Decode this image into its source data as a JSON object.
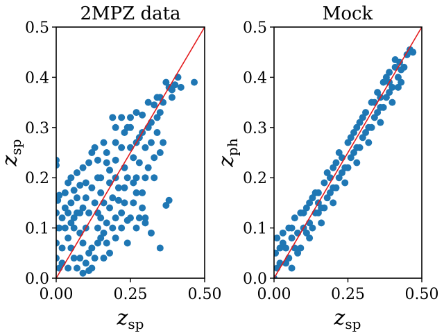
{
  "colors": {
    "points": "#1f77b4",
    "identity_line": "#e31a1c",
    "axes": "#000000"
  },
  "chart_data": [
    {
      "type": "scatter",
      "title": "2MPZ data",
      "xlabel": {
        "symbol": "z",
        "subscript": "sp"
      },
      "ylabel": {
        "symbol": "z",
        "subscript": "sp"
      },
      "xlim": [
        0,
        0.5
      ],
      "ylim": [
        0,
        0.5
      ],
      "xticks": [
        "0.00",
        "0.25",
        "0.50"
      ],
      "yticks": [
        "0.0",
        "0.1",
        "0.2",
        "0.3",
        "0.4",
        "0.5"
      ],
      "reference_line": {
        "from": [
          0,
          0
        ],
        "to": [
          0.5,
          0.5
        ]
      },
      "grid": false,
      "points": [
        [
          0.0,
          0.235
        ],
        [
          0.0,
          0.225
        ],
        [
          0.005,
          0.155
        ],
        [
          0.01,
          0.165
        ],
        [
          0.01,
          0.02
        ],
        [
          0.02,
          0.12
        ],
        [
          0.03,
          0.17
        ],
        [
          0.04,
          0.19
        ],
        [
          0.05,
          0.2
        ],
        [
          0.06,
          0.175
        ],
        [
          0.07,
          0.21
        ],
        [
          0.08,
          0.185
        ],
        [
          0.09,
          0.22
        ],
        [
          0.1,
          0.19
        ],
        [
          0.12,
          0.25
        ],
        [
          0.14,
          0.235
        ],
        [
          0.15,
          0.2
        ],
        [
          0.17,
          0.25
        ],
        [
          0.18,
          0.215
        ],
        [
          0.2,
          0.235
        ],
        [
          0.22,
          0.26
        ],
        [
          0.24,
          0.3
        ],
        [
          0.25,
          0.32
        ],
        [
          0.27,
          0.33
        ],
        [
          0.29,
          0.325
        ],
        [
          0.31,
          0.35
        ],
        [
          0.33,
          0.345
        ],
        [
          0.35,
          0.36
        ],
        [
          0.36,
          0.35
        ],
        [
          0.38,
          0.38
        ],
        [
          0.39,
          0.375
        ],
        [
          0.4,
          0.385
        ],
        [
          0.41,
          0.4
        ],
        [
          0.42,
          0.38
        ],
        [
          0.465,
          0.39
        ],
        [
          0.34,
          0.36
        ],
        [
          0.37,
          0.39
        ],
        [
          0.39,
          0.36
        ],
        [
          0.2,
          0.3
        ],
        [
          0.19,
          0.32
        ],
        [
          0.22,
          0.32
        ],
        [
          0.25,
          0.3
        ],
        [
          0.16,
          0.27
        ],
        [
          0.13,
          0.26
        ],
        [
          0.11,
          0.23
        ],
        [
          0.05,
          0.15
        ],
        [
          0.07,
          0.13
        ],
        [
          0.09,
          0.14
        ],
        [
          0.03,
          0.1
        ],
        [
          0.05,
          0.06
        ],
        [
          0.08,
          0.04
        ],
        [
          0.1,
          0.03
        ],
        [
          0.13,
          0.04
        ],
        [
          0.16,
          0.04
        ],
        [
          0.12,
          0.06
        ],
        [
          0.15,
          0.08
        ],
        [
          0.18,
          0.05
        ],
        [
          0.2,
          0.08
        ],
        [
          0.24,
          0.07
        ],
        [
          0.22,
          0.1
        ],
        [
          0.25,
          0.12
        ],
        [
          0.27,
          0.1
        ],
        [
          0.29,
          0.14
        ],
        [
          0.3,
          0.11
        ],
        [
          0.32,
          0.09
        ],
        [
          0.35,
          0.06
        ],
        [
          0.33,
          0.2
        ],
        [
          0.31,
          0.22
        ],
        [
          0.33,
          0.24
        ],
        [
          0.35,
          0.25
        ],
        [
          0.37,
          0.145
        ],
        [
          0.38,
          0.155
        ],
        [
          0.36,
          0.27
        ],
        [
          0.3,
          0.26
        ],
        [
          0.28,
          0.23
        ],
        [
          0.27,
          0.2
        ],
        [
          0.27,
          0.17
        ],
        [
          0.26,
          0.15
        ],
        [
          0.29,
          0.17
        ],
        [
          0.3,
          0.2
        ],
        [
          0.3,
          0.12
        ],
        [
          0.28,
          0.12
        ],
        [
          0.24,
          0.115
        ],
        [
          0.2,
          0.12
        ],
        [
          0.22,
          0.13
        ],
        [
          0.18,
          0.14
        ],
        [
          0.17,
          0.11
        ],
        [
          0.15,
          0.12
        ],
        [
          0.16,
          0.09
        ],
        [
          0.14,
          0.1
        ],
        [
          0.1,
          0.1
        ],
        [
          0.08,
          0.09
        ],
        [
          0.06,
          0.1
        ],
        [
          0.04,
          0.08
        ],
        [
          0.02,
          0.06
        ],
        [
          0.01,
          0.1
        ],
        [
          0.03,
          0.14
        ],
        [
          0.0,
          0.13
        ],
        [
          0.0,
          0.1
        ],
        [
          0.0,
          0.07
        ],
        [
          0.0,
          0.04
        ],
        [
          0.02,
          0.03
        ],
        [
          0.04,
          0.02
        ],
        [
          0.07,
          0.02
        ],
        [
          0.09,
          0.01
        ],
        [
          0.11,
          0.015
        ],
        [
          0.12,
          0.02
        ],
        [
          0.14,
          0.07
        ],
        [
          0.17,
          0.07
        ],
        [
          0.19,
          0.1
        ],
        [
          0.21,
          0.155
        ],
        [
          0.23,
          0.18
        ],
        [
          0.26,
          0.24
        ],
        [
          0.28,
          0.28
        ],
        [
          0.31,
          0.3
        ],
        [
          0.34,
          0.32
        ],
        [
          0.23,
          0.29
        ],
        [
          0.2,
          0.27
        ],
        [
          0.17,
          0.23
        ],
        [
          0.14,
          0.2
        ],
        [
          0.12,
          0.18
        ],
        [
          0.1,
          0.16
        ],
        [
          0.08,
          0.13
        ],
        [
          0.06,
          0.12
        ],
        [
          0.07,
          0.16
        ],
        [
          0.11,
          0.13
        ],
        [
          0.13,
          0.15
        ],
        [
          0.15,
          0.17
        ],
        [
          0.18,
          0.19
        ],
        [
          0.2,
          0.2
        ],
        [
          0.23,
          0.22
        ],
        [
          0.25,
          0.26
        ],
        [
          0.27,
          0.27
        ],
        [
          0.29,
          0.29
        ],
        [
          0.32,
          0.31
        ],
        [
          0.34,
          0.29
        ],
        [
          0.32,
          0.27
        ],
        [
          0.35,
          0.33
        ],
        [
          0.19,
          0.16
        ],
        [
          0.16,
          0.15
        ],
        [
          0.09,
          0.07
        ],
        [
          0.11,
          0.05
        ],
        [
          0.06,
          0.04
        ],
        [
          0.05,
          0.11
        ],
        [
          0.04,
          0.13
        ],
        [
          0.14,
          0.13
        ],
        [
          0.21,
          0.18
        ],
        [
          0.24,
          0.2
        ],
        [
          0.26,
          0.19
        ],
        [
          0.23,
          0.15
        ]
      ]
    },
    {
      "type": "scatter",
      "title": "Mock",
      "xlabel": {
        "symbol": "z",
        "subscript": "sp"
      },
      "ylabel": {
        "symbol": "z",
        "subscript": "ph"
      },
      "xlim": [
        0,
        0.5
      ],
      "ylim": [
        0,
        0.5
      ],
      "xticks": [
        "0.00",
        "0.25",
        "0.50"
      ],
      "yticks": [
        "0.0",
        "0.1",
        "0.2",
        "0.3",
        "0.4",
        "0.5"
      ],
      "reference_line": {
        "from": [
          0,
          0
        ],
        "to": [
          0.5,
          0.5
        ]
      },
      "grid": false,
      "points": [
        [
          0.0,
          0.0
        ],
        [
          0.005,
          0.05
        ],
        [
          0.01,
          0.08
        ],
        [
          0.02,
          0.03
        ],
        [
          0.02,
          0.06
        ],
        [
          0.03,
          0.09
        ],
        [
          0.04,
          0.06
        ],
        [
          0.05,
          0.1
        ],
        [
          0.05,
          0.04
        ],
        [
          0.06,
          0.08
        ],
        [
          0.07,
          0.12
        ],
        [
          0.08,
          0.09
        ],
        [
          0.08,
          0.05
        ],
        [
          0.09,
          0.13
        ],
        [
          0.1,
          0.1
        ],
        [
          0.11,
          0.14
        ],
        [
          0.12,
          0.11
        ],
        [
          0.12,
          0.08
        ],
        [
          0.13,
          0.16
        ],
        [
          0.14,
          0.13
        ],
        [
          0.15,
          0.17
        ],
        [
          0.16,
          0.14
        ],
        [
          0.16,
          0.11
        ],
        [
          0.17,
          0.19
        ],
        [
          0.18,
          0.16
        ],
        [
          0.19,
          0.2
        ],
        [
          0.2,
          0.18
        ],
        [
          0.2,
          0.15
        ],
        [
          0.21,
          0.23
        ],
        [
          0.22,
          0.2
        ],
        [
          0.23,
          0.24
        ],
        [
          0.24,
          0.22
        ],
        [
          0.24,
          0.19
        ],
        [
          0.25,
          0.27
        ],
        [
          0.26,
          0.24
        ],
        [
          0.27,
          0.29
        ],
        [
          0.28,
          0.26
        ],
        [
          0.28,
          0.23
        ],
        [
          0.29,
          0.31
        ],
        [
          0.3,
          0.28
        ],
        [
          0.31,
          0.33
        ],
        [
          0.32,
          0.3
        ],
        [
          0.32,
          0.27
        ],
        [
          0.33,
          0.35
        ],
        [
          0.34,
          0.32
        ],
        [
          0.35,
          0.37
        ],
        [
          0.36,
          0.34
        ],
        [
          0.36,
          0.31
        ],
        [
          0.37,
          0.39
        ],
        [
          0.38,
          0.36
        ],
        [
          0.39,
          0.41
        ],
        [
          0.4,
          0.38
        ],
        [
          0.4,
          0.35
        ],
        [
          0.41,
          0.42
        ],
        [
          0.42,
          0.4
        ],
        [
          0.425,
          0.43
        ],
        [
          0.43,
          0.39
        ],
        [
          0.45,
          0.445
        ],
        [
          0.46,
          0.455
        ],
        [
          0.47,
          0.45
        ],
        [
          0.41,
          0.435
        ],
        [
          0.43,
          0.415
        ],
        [
          0.38,
          0.4
        ],
        [
          0.36,
          0.36
        ],
        [
          0.34,
          0.35
        ],
        [
          0.3,
          0.32
        ],
        [
          0.26,
          0.28
        ],
        [
          0.22,
          0.25
        ],
        [
          0.18,
          0.21
        ],
        [
          0.14,
          0.17
        ],
        [
          0.1,
          0.13
        ],
        [
          0.06,
          0.1
        ],
        [
          0.03,
          0.07
        ],
        [
          0.01,
          0.02
        ],
        [
          0.04,
          0.03
        ],
        [
          0.07,
          0.06
        ],
        [
          0.11,
          0.09
        ],
        [
          0.15,
          0.13
        ],
        [
          0.19,
          0.17
        ],
        [
          0.23,
          0.21
        ],
        [
          0.27,
          0.25
        ],
        [
          0.31,
          0.29
        ],
        [
          0.35,
          0.33
        ],
        [
          0.39,
          0.37
        ],
        [
          0.37,
          0.34
        ],
        [
          0.33,
          0.3
        ],
        [
          0.29,
          0.26
        ],
        [
          0.25,
          0.22
        ],
        [
          0.21,
          0.18
        ],
        [
          0.17,
          0.14
        ],
        [
          0.13,
          0.1
        ],
        [
          0.09,
          0.06
        ],
        [
          0.06,
          0.02
        ],
        [
          0.12,
          0.15
        ],
        [
          0.2,
          0.22
        ],
        [
          0.28,
          0.3
        ],
        [
          0.44,
          0.42
        ],
        [
          0.42,
          0.38
        ],
        [
          0.39,
          0.39
        ],
        [
          0.15,
          0.15
        ]
      ]
    }
  ]
}
